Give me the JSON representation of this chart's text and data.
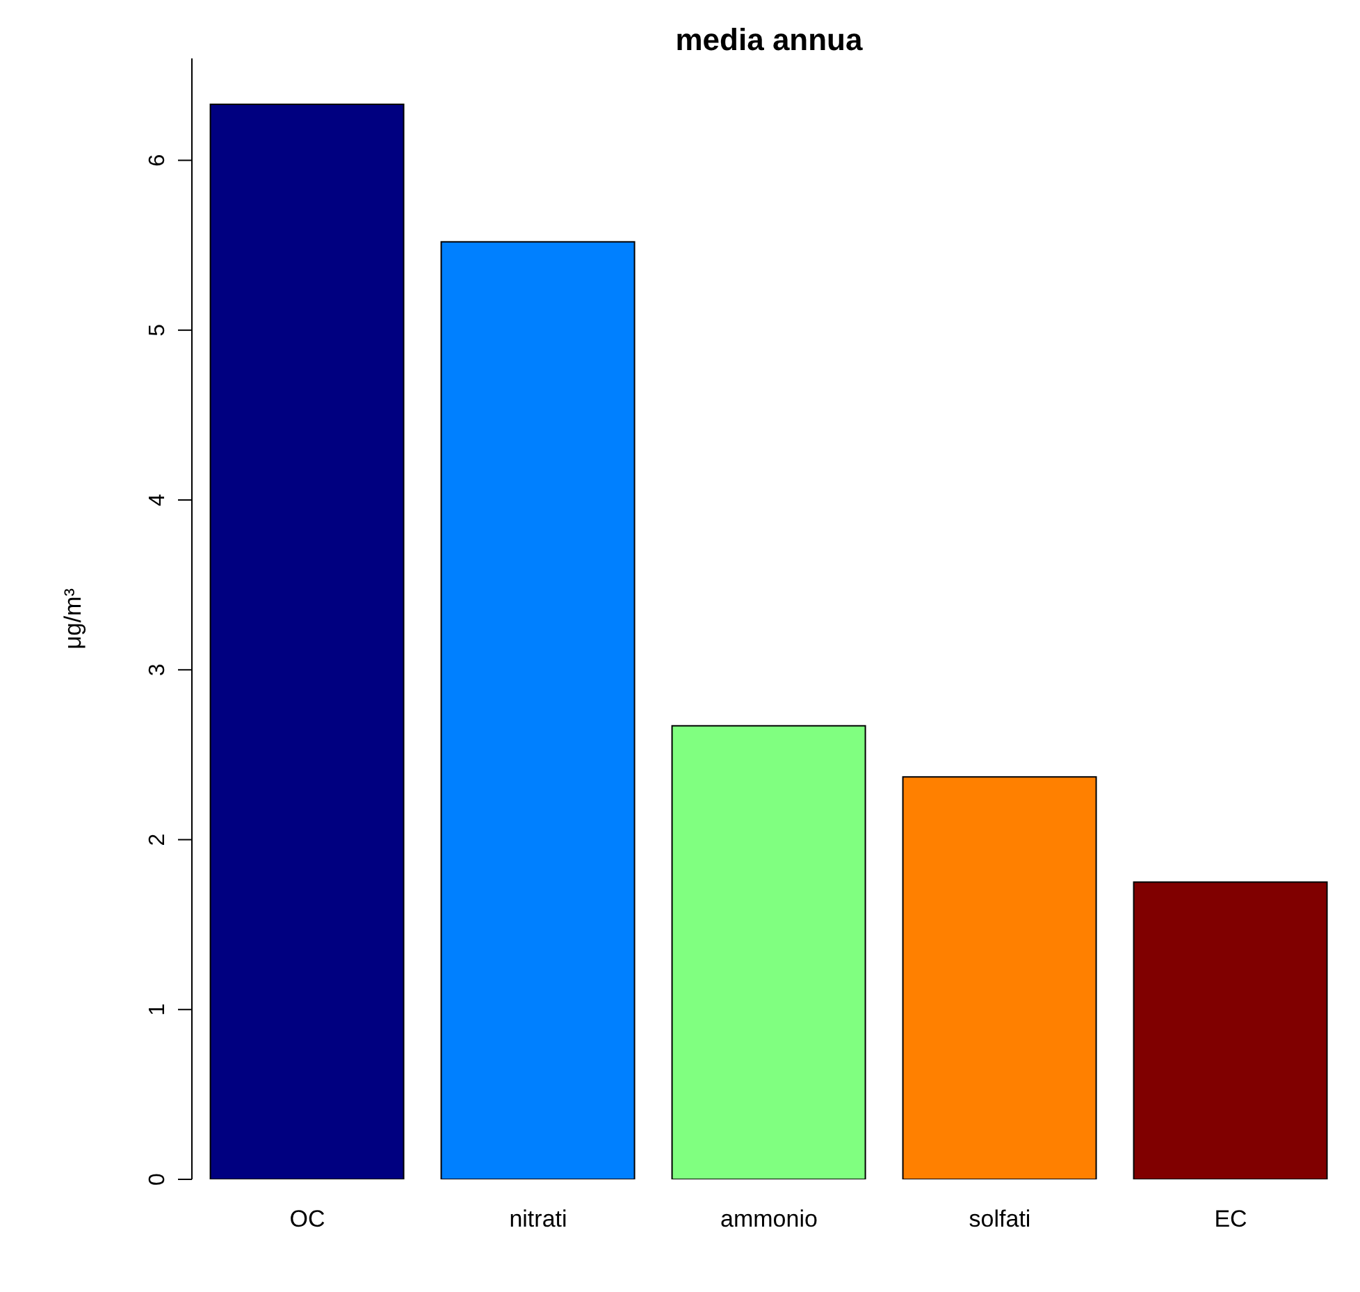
{
  "chart_data": {
    "type": "bar",
    "title": "media annua",
    "ylabel": "μg/m³",
    "categories": [
      "OC",
      "nitrati",
      "ammonio",
      "solfati",
      "EC"
    ],
    "values": [
      6.33,
      5.52,
      2.67,
      2.37,
      1.75
    ],
    "colors": [
      "#000080",
      "#0080ff",
      "#80ff80",
      "#ff8000",
      "#800000"
    ],
    "ylim": [
      0,
      6.6
    ],
    "yticks": [
      0,
      1,
      2,
      3,
      4,
      5,
      6
    ],
    "grid": false,
    "legend": false
  }
}
